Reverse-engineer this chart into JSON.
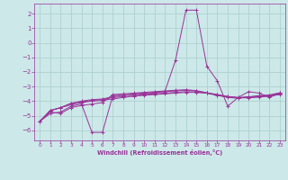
{
  "xlabel": "Windchill (Refroidissement éolien,°C)",
  "bg_color": "#cce8e8",
  "grid_color": "#aacccc",
  "line_color": "#993399",
  "xlim": [
    -0.5,
    23.5
  ],
  "ylim": [
    -6.7,
    2.7
  ],
  "yticks": [
    -6,
    -5,
    -4,
    -3,
    -2,
    -1,
    0,
    1,
    2
  ],
  "xticks": [
    0,
    1,
    2,
    3,
    4,
    5,
    6,
    7,
    8,
    9,
    10,
    11,
    12,
    13,
    14,
    15,
    16,
    17,
    18,
    19,
    20,
    21,
    22,
    23
  ],
  "lines": [
    [
      -5.4,
      -4.85,
      -4.75,
      -4.35,
      -4.2,
      -6.15,
      -6.15,
      -3.6,
      -3.6,
      -3.55,
      -3.5,
      -3.45,
      -3.3,
      -1.2,
      2.25,
      2.25,
      -1.6,
      -2.6,
      -4.35,
      -3.75,
      -3.35,
      -3.45,
      -3.75,
      -3.45
    ],
    [
      -5.4,
      -4.65,
      -4.45,
      -4.15,
      -4.05,
      -3.95,
      -3.9,
      -3.75,
      -3.7,
      -3.65,
      -3.6,
      -3.55,
      -3.5,
      -3.45,
      -3.4,
      -3.4,
      -3.45,
      -3.6,
      -3.75,
      -3.8,
      -3.75,
      -3.7,
      -3.65,
      -3.55
    ],
    [
      -5.4,
      -4.65,
      -4.45,
      -4.15,
      -4.0,
      -3.9,
      -3.85,
      -3.7,
      -3.6,
      -3.5,
      -3.45,
      -3.4,
      -3.35,
      -3.3,
      -3.25,
      -3.3,
      -3.45,
      -3.6,
      -3.7,
      -3.75,
      -3.7,
      -3.65,
      -3.6,
      -3.45
    ],
    [
      -5.4,
      -4.65,
      -4.45,
      -4.25,
      -4.1,
      -4.0,
      -3.95,
      -3.85,
      -3.75,
      -3.65,
      -3.55,
      -3.5,
      -3.45,
      -3.4,
      -3.35,
      -3.38,
      -3.45,
      -3.55,
      -3.68,
      -3.75,
      -3.78,
      -3.72,
      -3.65,
      -3.48
    ],
    [
      -5.4,
      -4.75,
      -4.85,
      -4.45,
      -4.3,
      -4.2,
      -4.1,
      -3.55,
      -3.5,
      -3.45,
      -3.4,
      -3.35,
      -3.3,
      -3.25,
      -3.22,
      -3.28,
      -3.42,
      -3.55,
      -3.7,
      -3.78,
      -3.73,
      -3.62,
      -3.58,
      -3.42
    ]
  ]
}
